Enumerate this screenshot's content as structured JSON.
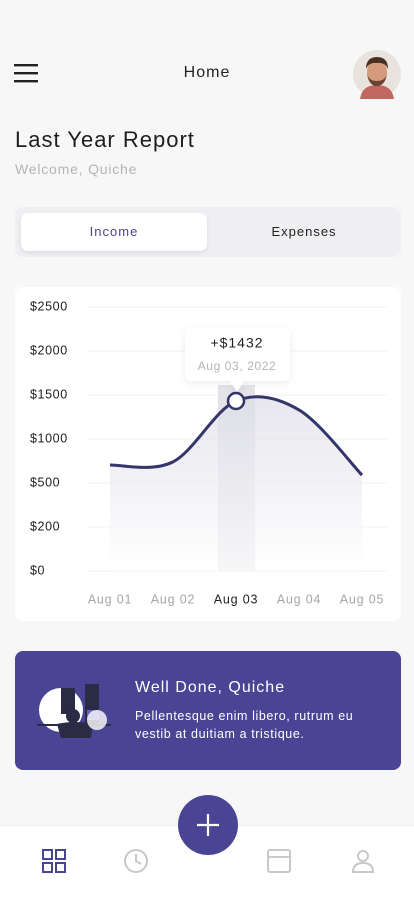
{
  "header": {
    "title": "Home"
  },
  "page": {
    "title": "Last Year Report",
    "subtitle": "Welcome, Quiche"
  },
  "tabs": [
    "Income",
    "Expenses"
  ],
  "chart_data": {
    "type": "line",
    "categories": [
      "Aug 01",
      "Aug 02",
      "Aug 03",
      "Aug 04",
      "Aug 05"
    ],
    "series": [
      {
        "name": "Income",
        "color": "#34356b",
        "values": [
          705,
          740,
          1432,
          1330,
          590
        ]
      }
    ],
    "ylim": [
      0,
      2500
    ],
    "yticks": [
      {
        "value": 0,
        "label": "$0"
      },
      {
        "value": 200,
        "label": "$200"
      },
      {
        "value": 500,
        "label": "$500"
      },
      {
        "value": 1000,
        "label": "$1000"
      },
      {
        "value": 1500,
        "label": "$1500"
      },
      {
        "value": 2000,
        "label": "$2000"
      },
      {
        "value": 2500,
        "label": "$2500"
      }
    ],
    "grid": true,
    "tooltip": {
      "index": 2,
      "value_label": "+$1432",
      "date": "Aug 03, 2022"
    }
  },
  "card": {
    "title": "Well Done, Quiche",
    "body": "Pellentesque enim libero, rutrum eu vestib at duitiam a tristique."
  }
}
